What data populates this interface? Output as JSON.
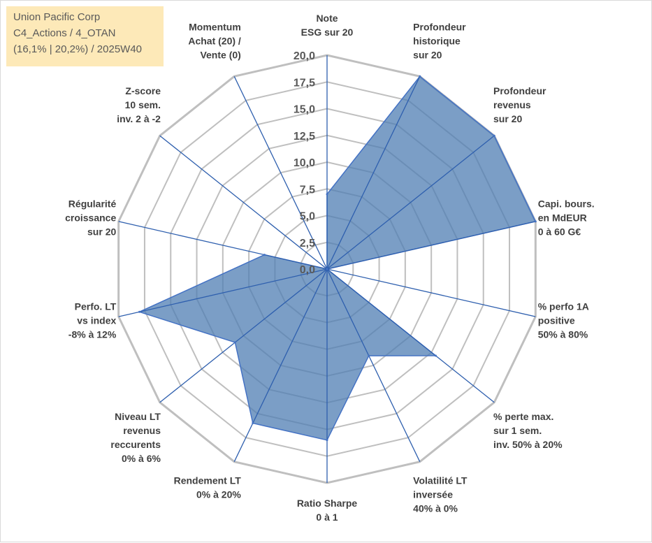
{
  "info_box": {
    "company": "Union Pacific Corp",
    "category": "C4_Actions / 4_OTAN",
    "details": "(16,1% | 20,2%) / 2025W40"
  },
  "colors": {
    "fill": "#4f7db3",
    "stroke": "#4472c4",
    "grid": "#bfbfbf",
    "spoke": "#2e5fae",
    "label": "#404040",
    "info_bg": "#fde9b8"
  },
  "chart_data": {
    "type": "radar",
    "title": "",
    "range": [
      0,
      20
    ],
    "ticks": [
      "0,0",
      "2,5",
      "5,0",
      "7,5",
      "10,0",
      "12,5",
      "15,0",
      "17,5",
      "20,0"
    ],
    "axes": [
      {
        "label": [
          "Note",
          "ESG sur 20"
        ],
        "value": 7.0
      },
      {
        "label": [
          "Profondeur",
          "historique",
          "sur 20"
        ],
        "value": 20.0
      },
      {
        "label": [
          "Profondeur",
          "revenus",
          "sur 20"
        ],
        "value": 20.0
      },
      {
        "label": [
          "Capi. bours.",
          "en MdEUR",
          "0 à 60 G€"
        ],
        "value": 20.0
      },
      {
        "label": [
          "% perfo 1A",
          "positive",
          "50% à 80%"
        ],
        "value": 0.0
      },
      {
        "label": [
          "% perte max.",
          "sur 1 sem.",
          "inv. 50% à 20%"
        ],
        "value": 13.0
      },
      {
        "label": [
          "Volatilité LT",
          "inversée",
          "40% à 0%"
        ],
        "value": 9.0
      },
      {
        "label": [
          "Ratio Sharpe",
          "0 à 1"
        ],
        "value": 16.0
      },
      {
        "label": [
          "Rendement LT",
          "0% à 20%"
        ],
        "value": 16.0
      },
      {
        "label": [
          "Niveau LT",
          "revenus",
          "reccurents",
          "0% à 6%"
        ],
        "value": 11.0
      },
      {
        "label": [
          "Perfo. LT",
          "vs index",
          "-8% à 12%"
        ],
        "value": 18.0
      },
      {
        "label": [
          "Régularité",
          "croissance",
          "sur 20"
        ],
        "value": 6.0
      },
      {
        "label": [
          "Z-score",
          "10 sem.",
          "inv. 2 à -2"
        ],
        "value": 0.0
      },
      {
        "label": [
          "Momentum",
          "Achat (20) /",
          "Vente (0)"
        ],
        "value": 0.0
      }
    ]
  }
}
